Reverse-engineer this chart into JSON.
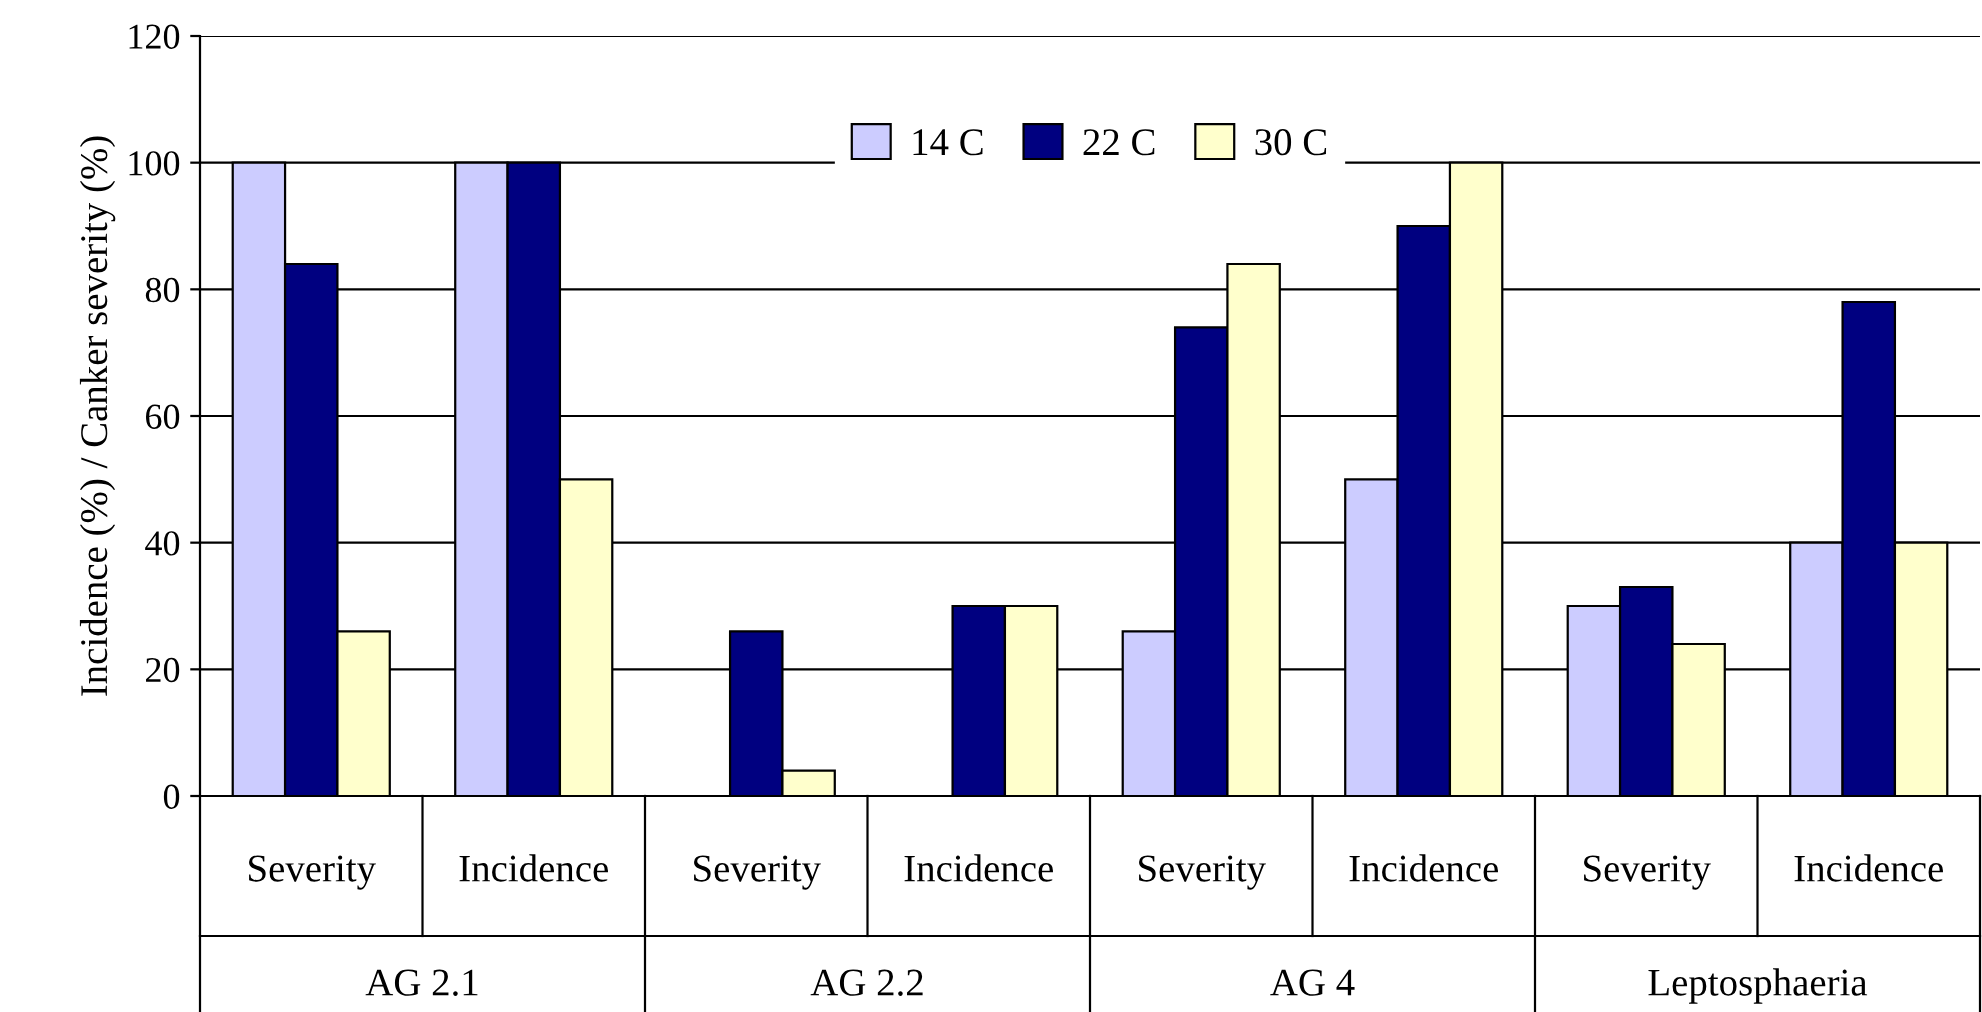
{
  "chart_data": {
    "type": "bar",
    "ylabel": "Incidence (%) / Canker severity (%)",
    "categories": [
      "Severity",
      "Incidence",
      "Severity",
      "Incidence",
      "Severity",
      "Incidence",
      "Severity",
      "Incidence"
    ],
    "series": [
      {
        "name": "14 C",
        "color": "#ccccff",
        "values": [
          100,
          100,
          null,
          null,
          26,
          50,
          30,
          40
        ]
      },
      {
        "name": "22 C",
        "color": "#000080",
        "values": [
          84,
          100,
          26,
          30,
          74,
          90,
          33,
          78
        ]
      },
      {
        "name": "30 C",
        "color": "#ffffcc",
        "values": [
          26,
          50,
          4,
          30,
          84,
          100,
          24,
          40
        ]
      }
    ],
    "annotations": [
      "AG 2.1",
      "AG 2.2",
      "AG 4",
      "Leptosphaeria"
    ],
    "ylim": [
      0,
      120
    ],
    "yticks": [
      0,
      20,
      40,
      60,
      80,
      100,
      120
    ],
    "grid": "y",
    "legend": "top"
  }
}
